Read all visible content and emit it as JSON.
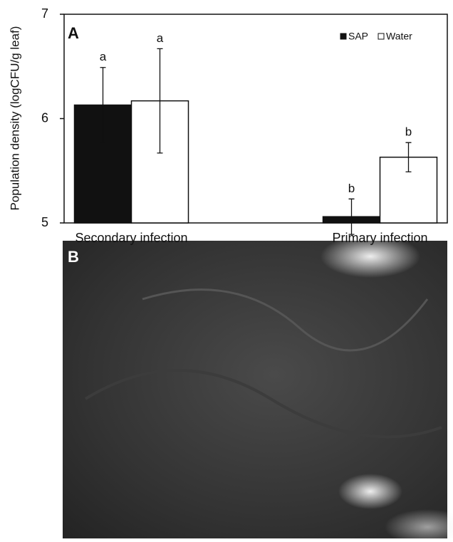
{
  "chart_data": {
    "type": "bar",
    "panel_label": "A",
    "ylabel": "Population density (logCFU/g leaf)",
    "categories": [
      "Secondary infection",
      "Primary infection"
    ],
    "series": [
      {
        "name": "SAP",
        "color": "#111111",
        "values": [
          6.13,
          5.06
        ],
        "errors": [
          0.36,
          0.17
        ],
        "annotations": [
          "a",
          "b"
        ]
      },
      {
        "name": "Water",
        "color": "#ffffff",
        "values": [
          6.17,
          5.63
        ],
        "errors": [
          0.5,
          0.14
        ],
        "annotations": [
          "a",
          "b"
        ]
      }
    ],
    "ylim": [
      5,
      7
    ],
    "yticks": [
      5,
      6,
      7
    ],
    "grid": false,
    "legend": "upper right"
  },
  "photo_panel": {
    "label": "B"
  }
}
